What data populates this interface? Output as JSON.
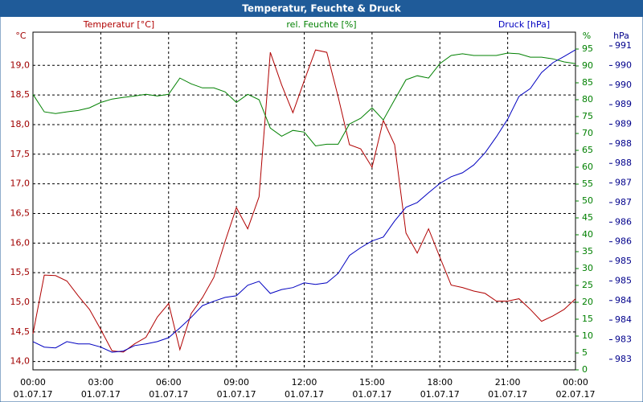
{
  "chart_data": {
    "type": "line",
    "title": "Temperatur, Feuchte & Druck",
    "x": [
      0,
      0.5,
      1,
      1.5,
      2,
      2.5,
      3,
      3.5,
      4,
      4.5,
      5,
      5.5,
      6,
      6.5,
      7,
      7.5,
      8,
      8.5,
      9,
      9.5,
      10,
      10.5,
      11,
      11.5,
      12,
      12.5,
      13,
      13.5,
      14,
      14.5,
      15,
      15.5,
      16,
      16.5,
      17,
      17.5,
      18,
      18.5,
      19,
      19.5,
      20,
      20.5,
      21,
      21.5,
      22,
      22.5,
      23,
      23.5,
      24
    ],
    "xlim": [
      0,
      24
    ],
    "xticks": [
      {
        "value": 0,
        "label": "00:00",
        "date": "01.07.17"
      },
      {
        "value": 3,
        "label": "03:00",
        "date": "01.07.17"
      },
      {
        "value": 6,
        "label": "06:00",
        "date": "01.07.17"
      },
      {
        "value": 9,
        "label": "09:00",
        "date": "01.07.17"
      },
      {
        "value": 12,
        "label": "12:00",
        "date": "01.07.17"
      },
      {
        "value": 15,
        "label": "15:00",
        "date": "01.07.17"
      },
      {
        "value": 18,
        "label": "18:00",
        "date": "01.07.17"
      },
      {
        "value": 21,
        "label": "21:00",
        "date": "01.07.17"
      },
      {
        "value": 24,
        "label": "00:00",
        "date": "02.07.17"
      }
    ],
    "ylim": [
      13.86,
      19.56
    ],
    "ylabel": "°C",
    "yticks": [
      {
        "value": 14,
        "label": "14,0"
      },
      {
        "value": 14.5,
        "label": "14,5"
      },
      {
        "value": 15,
        "label": "15,0"
      },
      {
        "value": 15.5,
        "label": "15,5"
      },
      {
        "value": 16,
        "label": "16,0"
      },
      {
        "value": 16.5,
        "label": "16,5"
      },
      {
        "value": 17,
        "label": "17,0"
      },
      {
        "value": 17.5,
        "label": "17,5"
      },
      {
        "value": 18,
        "label": "18,0"
      },
      {
        "value": 18.5,
        "label": "18,5"
      },
      {
        "value": 19,
        "label": "19,0"
      }
    ],
    "y2lim": [
      0,
      100
    ],
    "y2label": "%",
    "y2ticks": [
      0,
      5,
      10,
      15,
      20,
      25,
      30,
      35,
      40,
      45,
      50,
      55,
      60,
      65,
      70,
      75,
      80,
      85,
      90,
      95
    ],
    "y3lim": [
      982.53,
      991.15
    ],
    "y3label": "hPa",
    "y3ticks": [
      {
        "value": 982.8,
        "label": "983"
      },
      {
        "value": 983.3,
        "label": "983"
      },
      {
        "value": 983.8,
        "label": "984"
      },
      {
        "value": 984.3,
        "label": "984"
      },
      {
        "value": 984.8,
        "label": "985"
      },
      {
        "value": 985.3,
        "label": "985"
      },
      {
        "value": 985.8,
        "label": "986"
      },
      {
        "value": 986.3,
        "label": "986"
      },
      {
        "value": 986.8,
        "label": "987"
      },
      {
        "value": 987.3,
        "label": "987"
      },
      {
        "value": 987.8,
        "label": "988"
      },
      {
        "value": 988.3,
        "label": "988"
      },
      {
        "value": 988.8,
        "label": "989"
      },
      {
        "value": 989.3,
        "label": "989"
      },
      {
        "value": 989.8,
        "label": "990"
      },
      {
        "value": 990.3,
        "label": "990"
      },
      {
        "value": 990.8,
        "label": "991"
      }
    ],
    "grid": true,
    "series": [
      {
        "name": "Temperatur [°C]",
        "color": "#b00000",
        "axis": "y",
        "values": [
          14.47,
          15.46,
          15.45,
          15.36,
          15.11,
          14.88,
          14.54,
          14.18,
          14.16,
          14.3,
          14.41,
          14.75,
          14.98,
          14.2,
          14.81,
          15.08,
          15.42,
          16.03,
          16.6,
          16.24,
          16.78,
          19.22,
          18.67,
          18.2,
          18.74,
          19.26,
          19.22,
          18.47,
          17.66,
          17.59,
          17.28,
          18.07,
          17.66,
          16.17,
          15.83,
          16.24,
          15.76,
          15.29,
          15.25,
          15.19,
          15.15,
          15.02,
          15.02,
          15.06,
          14.88,
          14.68,
          14.77,
          14.88,
          15.06
        ]
      },
      {
        "name": "rel. Feuchte [%]",
        "color": "#008000",
        "axis": "y2",
        "values": [
          81.6,
          76.4,
          75.9,
          76.4,
          76.8,
          77.6,
          79.2,
          80.2,
          80.7,
          81.1,
          81.6,
          81.1,
          81.6,
          86.4,
          84.7,
          83.5,
          83.5,
          82.3,
          79.2,
          81.6,
          80.0,
          71.6,
          69.2,
          70.9,
          70.4,
          66.3,
          66.8,
          66.8,
          72.8,
          74.5,
          77.6,
          74.0,
          80.0,
          85.9,
          87.1,
          86.4,
          90.7,
          93.1,
          93.6,
          93.1,
          93.1,
          93.1,
          93.8,
          93.6,
          92.6,
          92.6,
          92.1,
          91.2,
          90.7
        ]
      },
      {
        "name": "Druck [hPa]",
        "color": "#0000c0",
        "axis": "y3",
        "values": [
          983.25,
          983.11,
          983.09,
          983.25,
          983.19,
          983.19,
          983.11,
          982.98,
          983.01,
          983.15,
          983.19,
          983.25,
          983.35,
          983.6,
          983.87,
          984.17,
          984.28,
          984.38,
          984.42,
          984.69,
          984.79,
          984.48,
          984.58,
          984.63,
          984.75,
          984.71,
          984.75,
          984.99,
          985.45,
          985.65,
          985.82,
          985.92,
          986.33,
          986.68,
          986.8,
          987.05,
          987.29,
          987.46,
          987.56,
          987.76,
          988.07,
          988.48,
          988.93,
          989.51,
          989.71,
          990.12,
          990.37,
          990.53,
          990.7
        ]
      }
    ]
  }
}
